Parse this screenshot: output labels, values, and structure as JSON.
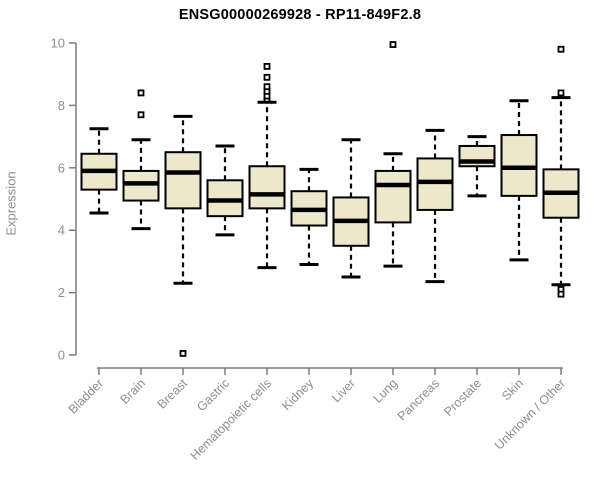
{
  "title": "ENSG00000269928 - RP11-849F2.8",
  "chart_data": {
    "type": "boxplot",
    "title": "ENSG00000269928 - RP11-849F2.8",
    "xlabel": "",
    "ylabel": "Expression",
    "ylim": [
      0,
      10
    ],
    "yticks": [
      0,
      2,
      4,
      6,
      8,
      10
    ],
    "grid": false,
    "legend": false,
    "categories": [
      "Bladder",
      "Brain",
      "Breast",
      "Gastric",
      "Hematopoietic cells",
      "Kidney",
      "Liver",
      "Lung",
      "Pancreas",
      "Prostate",
      "Skin",
      "Unknown / Other"
    ],
    "boxes": [
      {
        "category": "Bladder",
        "whisker_low": 4.55,
        "q1": 5.3,
        "median": 5.9,
        "q3": 6.45,
        "whisker_high": 7.25,
        "outliers": []
      },
      {
        "category": "Brain",
        "whisker_low": 4.05,
        "q1": 4.95,
        "median": 5.5,
        "q3": 5.9,
        "whisker_high": 6.9,
        "outliers": [
          7.7,
          8.4
        ]
      },
      {
        "category": "Breast",
        "whisker_low": 2.3,
        "q1": 4.7,
        "median": 5.85,
        "q3": 6.5,
        "whisker_high": 7.65,
        "outliers": [
          0.05
        ]
      },
      {
        "category": "Gastric",
        "whisker_low": 3.85,
        "q1": 4.45,
        "median": 4.95,
        "q3": 5.6,
        "whisker_high": 6.7,
        "outliers": []
      },
      {
        "category": "Hematopoietic cells",
        "whisker_low": 2.8,
        "q1": 4.7,
        "median": 5.15,
        "q3": 6.05,
        "whisker_high": 8.1,
        "outliers": [
          8.2,
          8.3,
          8.45,
          8.6,
          8.9,
          9.25
        ]
      },
      {
        "category": "Kidney",
        "whisker_low": 2.9,
        "q1": 4.15,
        "median": 4.65,
        "q3": 5.25,
        "whisker_high": 5.95,
        "outliers": []
      },
      {
        "category": "Liver",
        "whisker_low": 2.5,
        "q1": 3.5,
        "median": 4.3,
        "q3": 5.05,
        "whisker_high": 6.9,
        "outliers": []
      },
      {
        "category": "Lung",
        "whisker_low": 2.85,
        "q1": 4.25,
        "median": 5.45,
        "q3": 5.9,
        "whisker_high": 6.45,
        "outliers": [
          9.95
        ]
      },
      {
        "category": "Pancreas",
        "whisker_low": 2.35,
        "q1": 4.65,
        "median": 5.55,
        "q3": 6.3,
        "whisker_high": 7.2,
        "outliers": []
      },
      {
        "category": "Prostate",
        "whisker_low": 5.1,
        "q1": 6.05,
        "median": 6.2,
        "q3": 6.7,
        "whisker_high": 7.0,
        "outliers": []
      },
      {
        "category": "Skin",
        "whisker_low": 3.05,
        "q1": 5.1,
        "median": 6.0,
        "q3": 7.05,
        "whisker_high": 8.15,
        "outliers": []
      },
      {
        "category": "Unknown / Other",
        "whisker_low": 2.25,
        "q1": 4.4,
        "median": 5.2,
        "q3": 5.95,
        "whisker_high": 8.25,
        "outliers": [
          9.8,
          8.4,
          2.1,
          1.95
        ]
      }
    ],
    "colors": {
      "box_fill": "#EDE7CC",
      "box_border": "#000000",
      "median": "#000000",
      "whisker": "#000000",
      "outlier": "#000000",
      "axis_line": "#7d7d7d",
      "axis_text": "#8e8e8e",
      "title_text": "#000000",
      "background": "#ffffff"
    }
  }
}
